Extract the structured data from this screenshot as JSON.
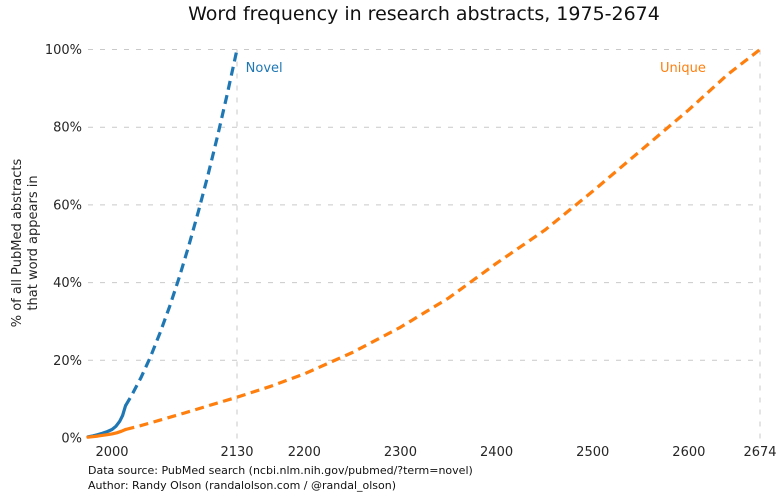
{
  "chart_data": {
    "type": "line",
    "title": "Word frequency in research abstracts, 1975-2674",
    "ylabel": "% of all PubMed abstracts\nthat word appears in",
    "xlim": [
      1975,
      2674
    ],
    "ylim": [
      0,
      100
    ],
    "grid": true,
    "x_ticks": [
      2000,
      2130,
      2200,
      2300,
      2400,
      2500,
      2600,
      2674
    ],
    "x_tick_labels": [
      "2000",
      "2130",
      "2200",
      "2300",
      "2400",
      "2500",
      "2600",
      "2674"
    ],
    "y_ticks": [
      0,
      20,
      40,
      60,
      80,
      100
    ],
    "y_tick_labels": [
      "0%",
      "20%",
      "40%",
      "60%",
      "80%",
      "100%"
    ],
    "gridlines_y": [
      20,
      40,
      60,
      80,
      100
    ],
    "gridlines_x": [
      2130,
      2674
    ],
    "series": [
      {
        "name": "Novel",
        "color": "#1f77b4",
        "line_style": "solid historical, dashed extrapolation",
        "solid_points": [
          [
            1975,
            0.3
          ],
          [
            1980,
            0.55
          ],
          [
            1985,
            0.85
          ],
          [
            1990,
            1.2
          ],
          [
            1995,
            1.65
          ],
          [
            2000,
            2.2
          ],
          [
            2004,
            3.0
          ],
          [
            2008,
            4.3
          ],
          [
            2011,
            5.8
          ],
          [
            2014,
            8.3
          ]
        ],
        "dashed_points": [
          [
            2014,
            8.3
          ],
          [
            2020,
            10.8
          ],
          [
            2030,
            15.5
          ],
          [
            2040,
            20.9
          ],
          [
            2050,
            27.1
          ],
          [
            2060,
            33.9
          ],
          [
            2070,
            41.4
          ],
          [
            2080,
            49.6
          ],
          [
            2090,
            58.5
          ],
          [
            2100,
            67.9
          ],
          [
            2110,
            78.0
          ],
          [
            2120,
            88.7
          ],
          [
            2130,
            100
          ]
        ]
      },
      {
        "name": "Unique",
        "color": "#ff7f0e",
        "line_style": "solid historical, dashed extrapolation",
        "solid_points": [
          [
            1975,
            0.2
          ],
          [
            1985,
            0.5
          ],
          [
            1995,
            0.85
          ],
          [
            2000,
            1.05
          ],
          [
            2005,
            1.35
          ],
          [
            2010,
            1.75
          ],
          [
            2014,
            2.2
          ]
        ],
        "dashed_points": [
          [
            2014,
            2.2
          ],
          [
            2030,
            3.2
          ],
          [
            2050,
            4.6
          ],
          [
            2075,
            6.4
          ],
          [
            2100,
            8.3
          ],
          [
            2130,
            10.5
          ],
          [
            2165,
            13.3
          ],
          [
            2200,
            16.5
          ],
          [
            2250,
            22.0
          ],
          [
            2300,
            28.5
          ],
          [
            2350,
            36.0
          ],
          [
            2400,
            45.0
          ],
          [
            2450,
            53.5
          ],
          [
            2500,
            63.5
          ],
          [
            2550,
            74.0
          ],
          [
            2600,
            84.5
          ],
          [
            2640,
            93.5
          ],
          [
            2674,
            100
          ]
        ]
      }
    ],
    "annotations": [
      {
        "text": "Novel",
        "color": "#1f77b4",
        "x": 2139,
        "y": 95.5
      },
      {
        "text": "Unique",
        "color": "#ff7f0e",
        "x": 2570,
        "y": 95.5
      }
    ]
  },
  "footer": {
    "source": "Data source: PubMed search (ncbi.nlm.nih.gov/pubmed/?term=novel)",
    "author": "Author: Randy Olson (randalolson.com / @randal_olson)"
  }
}
